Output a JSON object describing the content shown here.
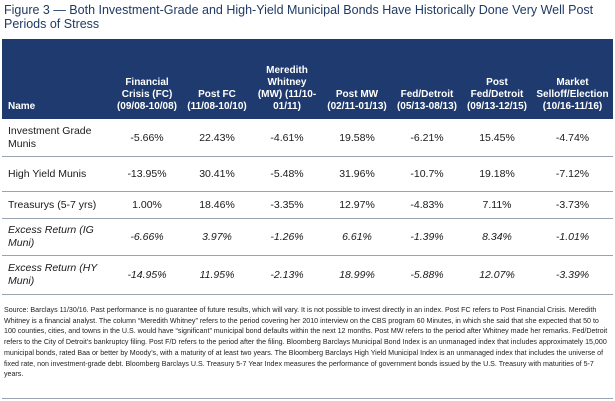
{
  "figure": {
    "title": "Figure 3 — Both Investment-Grade and High-Yield Municipal Bonds Have Historically Done Very Well Post Periods of Stress"
  },
  "table": {
    "headers": [
      "Name",
      "Financial Crisis (FC) (09/08-10/08)",
      "Post FC (11/08-10/10)",
      "Meredith Whitney (MW) (11/10-01/11)",
      "Post MW (02/11-01/13)",
      "Fed/Detroit (05/13-08/13)",
      "Post Fed/Detroit (09/13-12/15)",
      "Market Selloff/Election (10/16-11/16)"
    ],
    "rows": [
      {
        "name": "Investment Grade Munis",
        "values": [
          "-5.66%",
          "22.43%",
          "-4.61%",
          "19.58%",
          "-6.21%",
          "15.45%",
          "-4.74%"
        ]
      },
      {
        "name": "High Yield Munis",
        "values": [
          "-13.95%",
          "30.41%",
          "-5.48%",
          "31.96%",
          "-10.7%",
          "19.18%",
          "-7.12%"
        ]
      },
      {
        "name": "Treasurys (5-7 yrs)",
        "values": [
          "1.00%",
          "18.46%",
          "-3.35%",
          "12.97%",
          "-4.83%",
          "7.11%",
          "-3.73%"
        ]
      },
      {
        "name": "Excess Return (IG Muni)",
        "values": [
          "-6.66%",
          "3.97%",
          "-1.26%",
          "6.61%",
          "-1.39%",
          "8.34%",
          "-1.01%"
        ]
      },
      {
        "name": "Excess Return (HY Muni)",
        "values": [
          "-14.95%",
          "11.95%",
          "-2.13%",
          "18.99%",
          "-5.88%",
          "12.07%",
          "-3.39%"
        ]
      }
    ]
  },
  "source_note": "Source: Barclays 11/30/16. Past performance is no guarantee of future results, which will vary. It is not possible to invest directly in an index. Post FC refers to Post Financial Crisis. Meredith Whitney is a financial analyst. The column “Meredith Whitney” refers to the period covering her 2010 interview on the CBS program 60 Minutes, in which she said that she expected that 50 to 100 counties, cities, and towns in the U.S. would have “significant” municipal bond defaults within the next 12 months. Post MW refers to the period after Whitney made her remarks. Fed/Detroit refers to the City of Detroit’s bankruptcy filing. Post F/D refers to the period after the filing. Bloomberg Barclays Municipal Bond Index is an unmanaged index that includes approximately 15,000 municipal bonds, rated Baa or better by Moody’s, with a maturity of at least two years. The Bloomberg Barclays High Yield Municipal Index is an unmanaged index that includes the universe of fixed rate, non investment-grade debt. Bloomberg Barclays U.S. Treasury 5-7 Year Index measures the performance of government bonds issued by the U.S. Treasury with maturities of 5-7 years.",
  "colors": {
    "header_bg": "#1e3a6e",
    "title": "#1f3a66"
  }
}
